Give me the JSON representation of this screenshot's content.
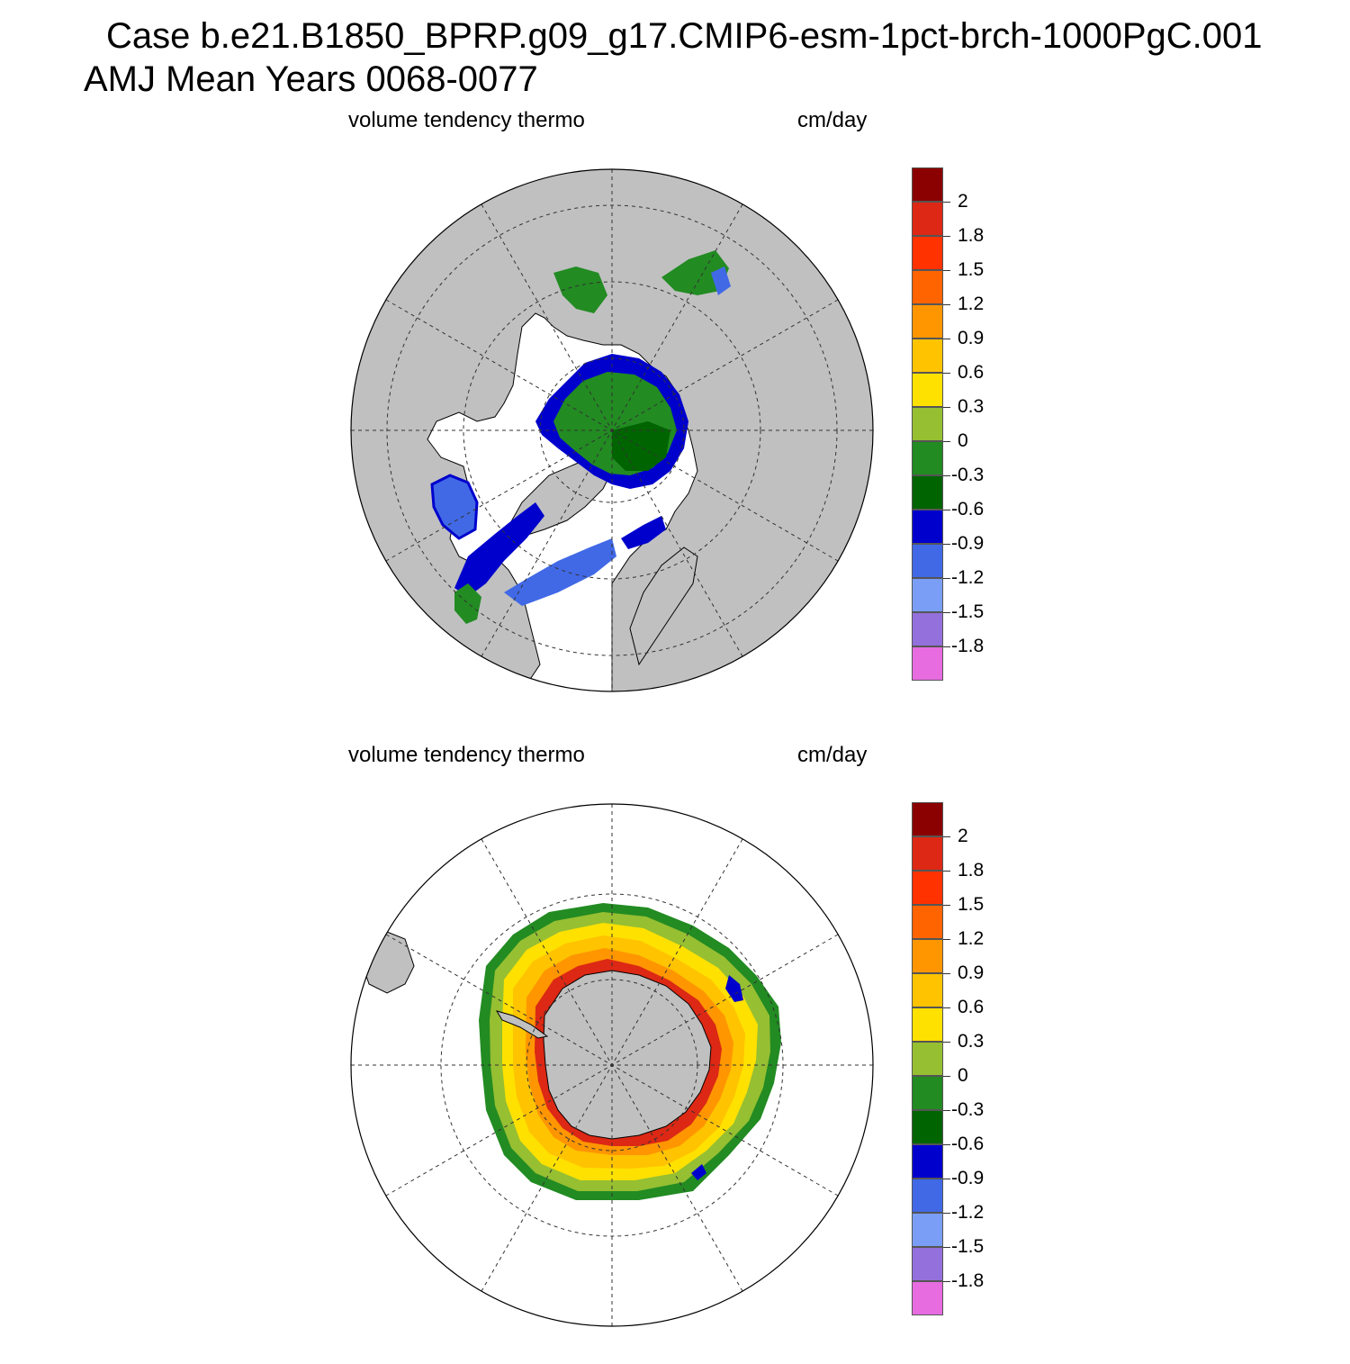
{
  "title": {
    "line1": "Case b.e21.B1850_BPRP.g09_g17.CMIP6-esm-1pct-brch-1000PgC.001",
    "line2": "AMJ Mean   Years 0068-0077"
  },
  "panels": [
    {
      "hemisphere": "north",
      "variable": "volume tendency thermo",
      "units": "cm/day"
    },
    {
      "hemisphere": "south",
      "variable": "volume tendency thermo",
      "units": "cm/day"
    }
  ],
  "colorbar": {
    "colors": [
      "#e66ce0",
      "#9370db",
      "#7a9ef5",
      "#4169e6",
      "#0000cd",
      "#006400",
      "#228b22",
      "#96bf32",
      "#ffe100",
      "#ffc300",
      "#ff9600",
      "#ff6400",
      "#ff3200",
      "#dc2814",
      "#8b0000"
    ],
    "labels": [
      "-1.8",
      "-1.5",
      "-1.2",
      "-0.9",
      "-0.6",
      "-0.3",
      "0",
      "0.3",
      "0.6",
      "0.9",
      "1.2",
      "1.5",
      "1.8",
      "2"
    ]
  },
  "style": {
    "land": "#c0c0c0",
    "ocean": "#ffffff"
  }
}
